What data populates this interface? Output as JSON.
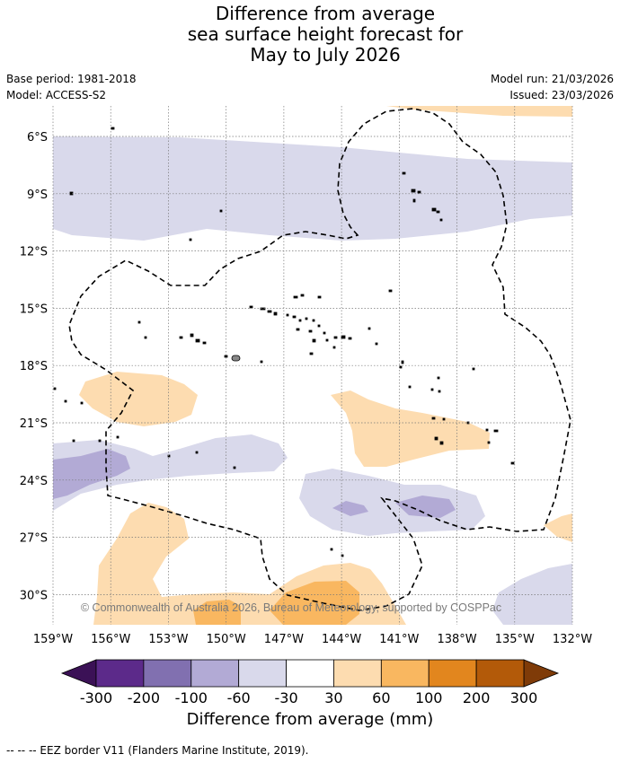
{
  "title": {
    "line1": "Difference from average",
    "line2": "sea surface height forecast for",
    "line3": "May to July 2026"
  },
  "meta": {
    "base_period": "Base period: 1981-2018",
    "model": "Model: ACCESS-S2",
    "model_run": "Model run: 21/03/2026",
    "issued": "Issued: 23/03/2026"
  },
  "map": {
    "lat_labels": [
      "6°S",
      "9°S",
      "12°S",
      "15°S",
      "18°S",
      "21°S",
      "24°S",
      "27°S",
      "30°S"
    ],
    "lon_labels": [
      "159°W",
      "156°W",
      "153°W",
      "150°W",
      "147°W",
      "144°W",
      "141°W",
      "138°W",
      "135°W",
      "132°W"
    ],
    "copyright": "© Commonwealth of Australia 2026, Bureau of Meteorology, supported by COSPPac"
  },
  "colorbar": {
    "ticks": [
      "-300",
      "-200",
      "-100",
      "-60",
      "-30",
      "30",
      "60",
      "100",
      "200",
      "300"
    ],
    "colors": [
      "#5c2a8a",
      "#8170b0",
      "#b2aad5",
      "#d9d9eb",
      "#ffffff",
      "#fddcb0",
      "#f9b760",
      "#e2861e",
      "#b35a09"
    ],
    "extend_low_color": "#3b1156",
    "extend_high_color": "#7f3b08",
    "label": "Difference from average (mm)"
  },
  "footnote": "--  --  -- EEZ border V11 (Flanders Marine Institute, 2019)."
}
